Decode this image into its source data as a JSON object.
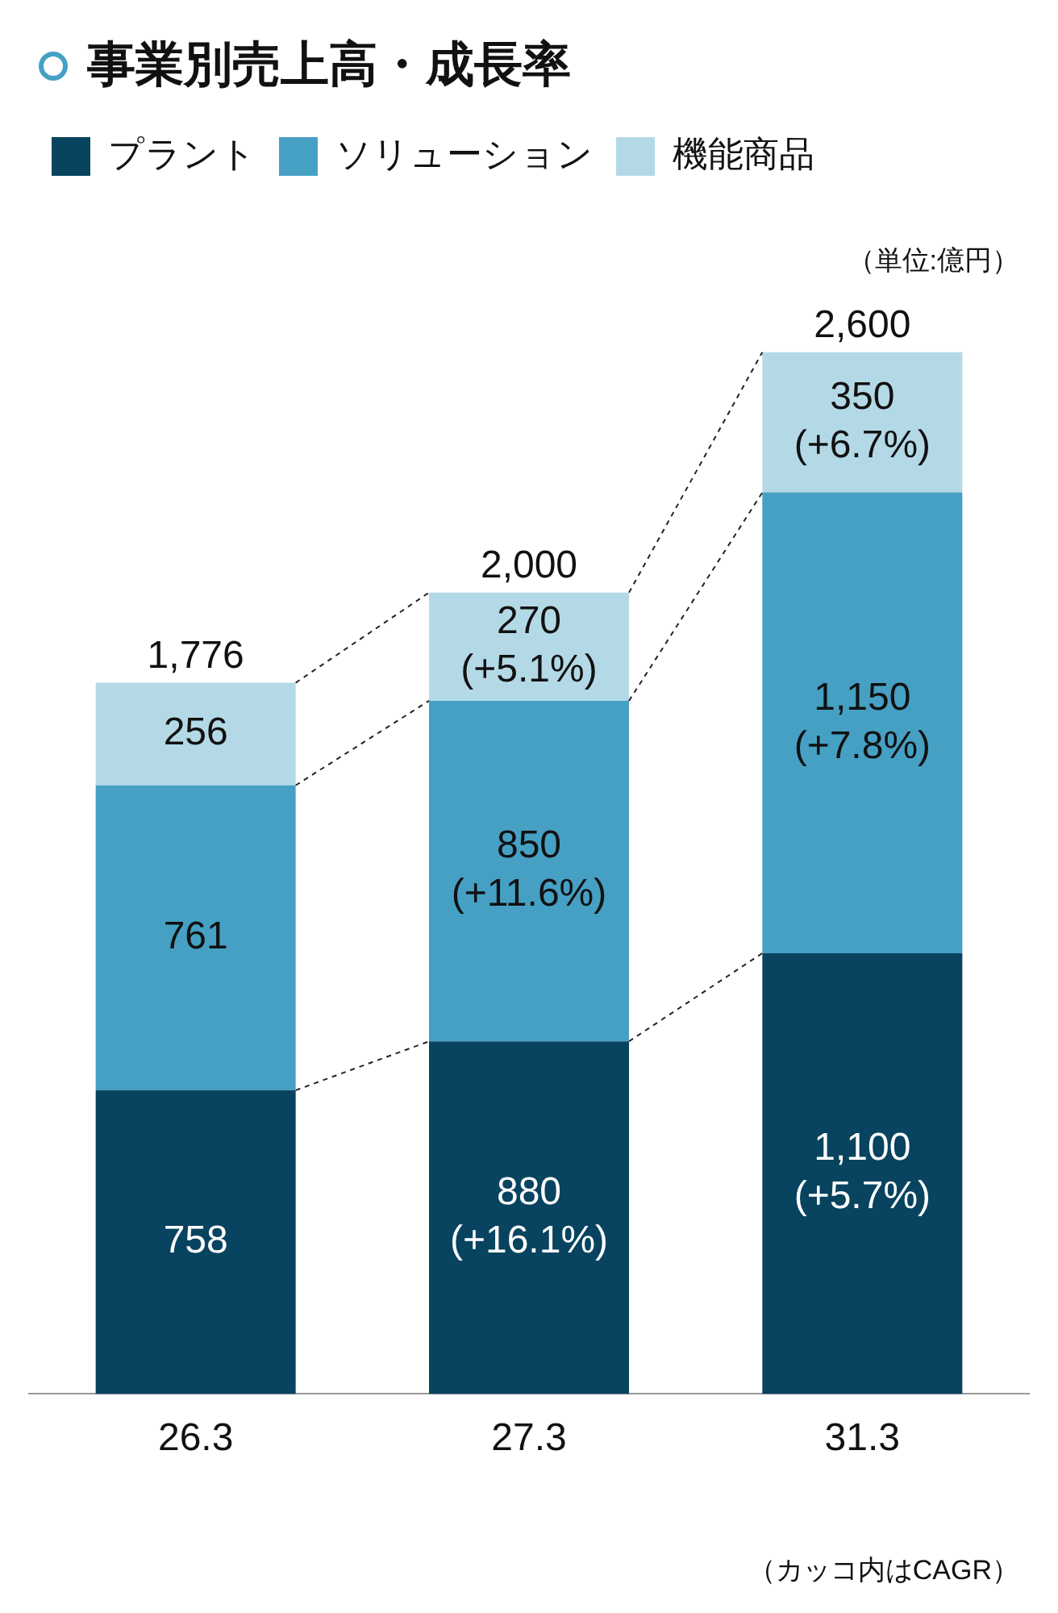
{
  "chart_data": {
    "type": "bar",
    "title": "事業別売上高・成長率",
    "stacked": true,
    "legend": "top left",
    "grid": false,
    "data_labels": true,
    "categories": [
      "26.3",
      "27.3",
      "31.3"
    ],
    "series": [
      {
        "name": "プラント",
        "color": "#08435f",
        "values": [
          758,
          880,
          1100
        ],
        "value_labels": [
          "758",
          "880\n(+16.1%)",
          "1,100\n(+5.7%)"
        ]
      },
      {
        "name": "ソリューション",
        "color": "#46a0c4",
        "values": [
          761,
          850,
          1150
        ],
        "value_labels": [
          "761",
          "850\n(+11.6%)",
          "1,150\n(+7.8%)"
        ]
      },
      {
        "name": "機能商品",
        "color": "#b4d9e6",
        "values": [
          256,
          270,
          350
        ],
        "value_labels": [
          "256",
          "270\n(+5.1%)",
          "350\n(+6.7%)"
        ]
      }
    ],
    "totals": [
      "1,776",
      "2,000",
      "2,600"
    ],
    "annotations": [
      "（単位:億円）",
      "（カッコ内はCAGR）"
    ]
  }
}
